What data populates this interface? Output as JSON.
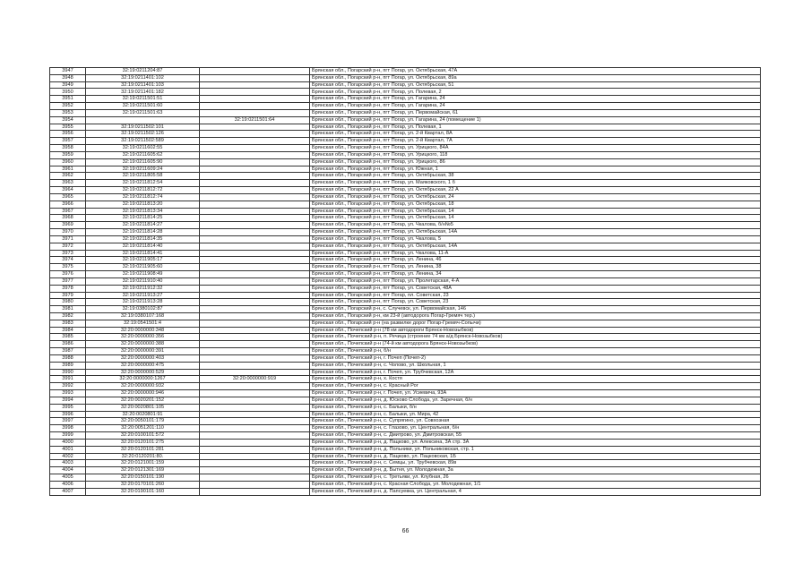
{
  "table": {
    "rows": [
      [
        "3947",
        "32:19:0211204:87",
        "",
        "Брянская обл., Погарский р-н, пгт Погар, ул. Октябрьская, 47А"
      ],
      [
        "3948",
        "32:19:0211401:102",
        "",
        "Брянская обл., Погарский р-н, пгт Погар, ул. Октябрьская, 89а"
      ],
      [
        "3949",
        "32:19:0211401:103",
        "",
        "Брянская обл., Погарский р-н, пгт Погар, ул. Октябрьская, 51"
      ],
      [
        "3950",
        "32:19:0211401:182",
        "",
        "Брянская обл., Погарский р-н, пгт Погар, ул. Полевая, 2"
      ],
      [
        "3951",
        "32:19:0211501:51",
        "",
        "Брянская обл., Погарский р-н, пгт Погар, ул. Гагарина, 24"
      ],
      [
        "3952",
        "32:19:0211501:60",
        "",
        "Брянская обл., Погарский р-н, пгт Погар, ул. Гагарина, 24"
      ],
      [
        "3953",
        "32:19:0211501:63",
        "",
        "Брянская обл., Погарский р-н, пгт Погар, ул. Первомайская, 61"
      ],
      [
        "3954",
        "",
        "32:19:0211501:64",
        "Брянская обл., Погарский р-н, пгт Погар, ул. Гагарина, 24 (помещение 1)"
      ],
      [
        "3955",
        "32:19:0211502:101",
        "",
        "Брянская обл., Погарский р-н, пгт Погар, ул. Полевая, 1"
      ],
      [
        "3956",
        "32:19:0211502:126",
        "",
        "Брянская обл., Погарский р-н, пгт Погар, ул. 2-й Квартал, 8А"
      ],
      [
        "3957",
        "32:19:0211502:589",
        "",
        "Брянская обл., Погарский р-н, пгт Погар, ул. 2-й Квартал, 7А"
      ],
      [
        "3958",
        "32:19:0211602:55",
        "",
        "Брянская обл., Погарский р-н, пгт Погар, ул. Урицкого, 84А"
      ],
      [
        "3959",
        "32:19:0211605:62",
        "",
        "Брянская обл., Погарский р-н, пгт Погар, ул. Урицкого, 118"
      ],
      [
        "3960",
        "32:19:0211605:90",
        "",
        "Брянская обл., Погарский р-н, пгт Погар, ул. Урицкого, 86"
      ],
      [
        "3961",
        "32:19:0211609:24",
        "",
        "Брянская обл., Погарский р-н, пгт Погар, ул. Южная, 1"
      ],
      [
        "3962",
        "32:19:0211805:58",
        "",
        "Брянская обл., Погарский р-н, пгт Погар, ул. Октябрьская, 38"
      ],
      [
        "3963",
        "32:19:0211812:54",
        "",
        "Брянская обл., Погарский р-н, пгт Погар, ул. Маяковского, 1 б"
      ],
      [
        "3964",
        "32:19:0211812:72",
        "",
        "Брянская обл., Погарский р-н, пгт Погар, ул. Октябрьская, 22 А"
      ],
      [
        "3965",
        "32:19:0211812:74",
        "",
        "Брянская обл., Погарский р-н, пгт Погар, ул. Октябрьская, 24"
      ],
      [
        "3966",
        "32:19:0211813:20",
        "",
        "Брянская обл., Погарский р-н, пгт Погар, ул. Октябрьская, 18"
      ],
      [
        "3967",
        "32:19:0211813:34",
        "",
        "Брянская обл., Погарский р-н, пгт Погар, ул. Октябрьская, 14"
      ],
      [
        "3968",
        "32:19:0211814:25",
        "",
        "Брянская обл., Погарский р-н, пгт Погар, ул. Октябрьская, 14"
      ],
      [
        "3969",
        "32:19:0211814:27",
        "",
        "Брянская обл., Погарский р-н, пгт Погар, ул. Чкалова, б/н№5"
      ],
      [
        "3970",
        "32:19:0211814:28",
        "",
        "Брянская обл., Погарский р-н, пгт Погар, ул. Октябрьская, 14А"
      ],
      [
        "3971",
        "32:19:0211814:35",
        "",
        "Брянская обл., Погарский р-н, пгт Погар, ул. Чкалова, 5"
      ],
      [
        "3972",
        "32:19:0211814:40",
        "",
        "Брянская обл., Погарский р-н, пгт Погар, ул. Октябрьская, 14А"
      ],
      [
        "3973",
        "32:19:0211814:41",
        "",
        "Брянская обл., Погарский р-н, пгт Погар, ул. Чкалова, 11-А"
      ],
      [
        "3974",
        "32:19:0211905:17",
        "",
        "Брянская обл., Погарский р-н, пгт Погар, ул. Ленина, 46"
      ],
      [
        "3975",
        "32:19:0211905:60",
        "",
        "Брянская обл., Погарский р-н, пгт Погар, ул. Ленина, 38"
      ],
      [
        "3976",
        "32:19:0211908:49",
        "",
        "Брянская обл., Погарский р-н, пгт Погар, ул. Ленина, 34"
      ],
      [
        "3977",
        "32:19:0211910:40",
        "",
        "Брянская обл., Погарский р-н, пгт Погар, ул. Пролетарская, 4-А"
      ],
      [
        "3978",
        "32:19:0211912:32",
        "",
        "Брянская обл., Погарский р-н, пгт Погар, ул. Советская, 48А"
      ],
      [
        "3979",
        "32:19:0211913:27",
        "",
        "Брянская обл., Погарский р-н, пгт Погар, пл. Советская, 23"
      ],
      [
        "3980",
        "32:19:0211913:28",
        "",
        "Брянская обл., Погарский р-н, пгт Погар, ул. Советская, 23"
      ],
      [
        "3981",
        "32:19:0380102:87",
        "",
        "Брянская обл., Погарский р-н, с. Случевск, ул. Первомайская, 146"
      ],
      [
        "3982",
        "32:19:0380107:168",
        "",
        "Брянская обл., Погарский р-н, км 23-й (автодорога Погар-Гремяч тер.)"
      ],
      [
        "3983",
        "32:19:0541501:4",
        "",
        "Брянская обл., Погарский р-н (на развилке дорог Погар-Гремяч-Сопычи)"
      ],
      [
        "3984",
        "32:20:0000000:348",
        "",
        "Брянская обл., Почепский р-н (78 км автодороги Брянск-Новозыбков)"
      ],
      [
        "3985",
        "32:20:0000000:356",
        "",
        "Брянская обл., Почепский р-н, п. Речица (строение 74 км а/д Брянск-Новозыбков)"
      ],
      [
        "3986",
        "32:20:0000000:388",
        "",
        "Брянская обл., Почепский р-н (74-й км автодорога Брянск-Новозыбков)"
      ],
      [
        "3987",
        "32:20:0000000:391",
        "",
        "Брянская обл., Почепский р-н, б/н"
      ],
      [
        "3988",
        "32:20:0000000:403",
        "",
        "Брянская обл., Почепский р-н, г. Почеп (Почеп-2)"
      ],
      [
        "3989",
        "32:20:0000000:475",
        "",
        "Брянская обл., Почепский р-н, с. Чолово, ул. Школьная, 1"
      ],
      [
        "3990",
        "32:20:0000000:529",
        "",
        "Брянская обл., Почепский р-н, г. Почеп, ул. Трубчевская, 12А"
      ],
      [
        "3991",
        "32:20:0000000:1267",
        "32:20:0000000:919",
        "Брянская обл., Почепский р-н, х. Костя"
      ],
      [
        "3992",
        "32:20:0000000:932",
        "",
        "Брянская обл., Почепский р-н, с. Красный Рог"
      ],
      [
        "3993",
        "32:20:0000000:946",
        "",
        "Брянская обл., Почепский р-н, г. Почеп, ул. Усиевича, 93А"
      ],
      [
        "3994",
        "32:20:0020201:152",
        "",
        "Брянская обл., Почепский р-н, д. Юсково Слобода, ул. Заречная, б/н"
      ],
      [
        "3995",
        "32:20:0020801:105",
        "",
        "Брянская обл., Почепский р-н, с. Балыки, б/н"
      ],
      [
        "3996",
        "32:20:0020801:91",
        "",
        "Брянская обл., Почепский р-н, с. Балыки, ул. Мира, 42"
      ],
      [
        "3997",
        "32:20:0050101:179",
        "",
        "Брянская обл., Почепский р-н, с. Супрягино, ул. Совхозная"
      ],
      [
        "3998",
        "32:20:0051201:110",
        "",
        "Брянская обл., Почепский р-н, с. Глазово, ул. Центральная, б/н"
      ],
      [
        "3999",
        "32:20:0100101:572",
        "",
        "Брянская обл., Почепский р-н, с. Дмитрово, ул. Дмитровская, 55"
      ],
      [
        "4000",
        "32:20:0120101:275",
        "",
        "Брянская обл., Почепский р-н, д. Пацково, ул. Алексина, 3А стр. 3А"
      ],
      [
        "4001",
        "32:20:0120101:281",
        "",
        "Брянская обл., Почепский р-н, д. Польники, ул. Польниковская, стр. 1"
      ],
      [
        "4002",
        "32:20:0120201:80.",
        "",
        "Брянская обл., Почепский р-н, д. Пацково, ул. Пацковская, 1Б"
      ],
      [
        "4003",
        "32:20:0121001:159",
        "",
        "Брянская обл., Почепский р-н, с. Семцы, ул. Трубчевская, 89в"
      ],
      [
        "4004",
        "32:20:0121301:169",
        "",
        "Брянская обл., Почепский р-н, д. Бытня, ул. Молодежная, 3а"
      ],
      [
        "4005",
        "32:20:0150101:190",
        "",
        "Брянская обл., Почепский р-н, с. Третьяки, ул. Клубная, 26"
      ],
      [
        "4006",
        "32:20:0170101:260",
        "",
        "Брянская обл., Почепский р-н, с. Красная Слобода, ул. Молодежная, 1/1"
      ],
      [
        "4007",
        "32:20:0190101:160",
        "",
        "Брянская обл., Почепский р-н, д. Папсуевка, ул. Центральная, 4"
      ]
    ]
  },
  "footer": {
    "page_number": "66"
  }
}
